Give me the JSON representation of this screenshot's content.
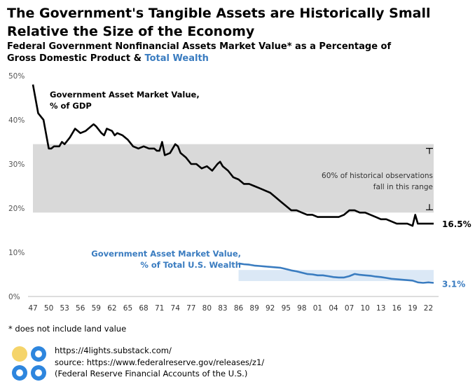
{
  "header": {
    "title": "The Government's Tangible Assets are Historically Small Relative the Size of the Economy",
    "subtitle_line1": "Federal Government Nonfinancial Assets Market Value* as a Percentage of",
    "subtitle_line2_a": "Gross Domestic Product & ",
    "subtitle_line2_b": "Total Wealth"
  },
  "footnote": "* does not include land value",
  "source": {
    "site": "https://4lights.substack.com/",
    "url": "source: https://www.federalreserve.gov/releases/z1/",
    "desc": "(Federal Reserve Financial Accounts of the U.S.)"
  },
  "colors": {
    "gdp_line": "#000000",
    "wealth_line": "#3a7cc0",
    "gdp_band": "#d9d9d9",
    "wealth_band": "#dbe8f6",
    "logo_yellow": "#f5d46a",
    "logo_blue": "#2e86de"
  },
  "chart_data": {
    "type": "line",
    "ylim": [
      0,
      50
    ],
    "xlim": [
      1947,
      2023
    ],
    "y_ticks": [
      0,
      10,
      20,
      30,
      40,
      50
    ],
    "y_tick_labels": [
      "0%",
      "10%",
      "20%",
      "30%",
      "40%",
      "50%"
    ],
    "x_ticks": [
      1947,
      1950,
      1953,
      1956,
      1959,
      1962,
      1965,
      1968,
      1971,
      1974,
      1977,
      1980,
      1983,
      1986,
      1989,
      1992,
      1995,
      1998,
      2001,
      2004,
      2007,
      2010,
      2013,
      2016,
      2019,
      2022
    ],
    "x_tick_labels": [
      "47",
      "50",
      "53",
      "56",
      "59",
      "62",
      "65",
      "68",
      "71",
      "74",
      "77",
      "80",
      "83",
      "86",
      "89",
      "92",
      "95",
      "98",
      "01",
      "04",
      "07",
      "10",
      "13",
      "16",
      "19",
      "22"
    ],
    "series": [
      {
        "name": "Government Asset Market Value, % of GDP",
        "label_line1": "Government Asset Market Value,",
        "label_line2": "% of GDP",
        "end_label": "16.5%",
        "color": "#000000",
        "x": [
          1947,
          1948,
          1949,
          1950,
          1950.5,
          1951,
          1952,
          1952.5,
          1953,
          1954,
          1955,
          1955.5,
          1956,
          1957,
          1958,
          1958.5,
          1959,
          1960,
          1960.5,
          1961,
          1962,
          1962.5,
          1963,
          1964,
          1965,
          1966,
          1967,
          1968,
          1969,
          1970,
          1970.5,
          1971,
          1971.5,
          1972,
          1973,
          1974,
          1974.5,
          1975,
          1976,
          1977,
          1978,
          1979,
          1980,
          1981,
          1982,
          1982.5,
          1983,
          1984,
          1985,
          1986,
          1987,
          1988,
          1989,
          1990,
          1991,
          1992,
          1993,
          1994,
          1995,
          1996,
          1997,
          1998,
          1999,
          2000,
          2001,
          2002,
          2003,
          2004,
          2005,
          2006,
          2007,
          2008,
          2009,
          2010,
          2011,
          2012,
          2013,
          2014,
          2015,
          2016,
          2017,
          2018,
          2019,
          2019.5,
          2020,
          2021,
          2022,
          2023
        ],
        "values": [
          48,
          41.5,
          40,
          33.5,
          33.5,
          34,
          34,
          35,
          34.5,
          36,
          38,
          37.5,
          37,
          37.5,
          38.5,
          39,
          38.5,
          37,
          36.5,
          38,
          37.5,
          36.5,
          37,
          36.5,
          35.5,
          34,
          33.5,
          34,
          33.5,
          33.5,
          33,
          33,
          35,
          32,
          32.5,
          34.5,
          34,
          32.5,
          31.5,
          30,
          30,
          29,
          29.5,
          28.5,
          30,
          30.5,
          29.5,
          28.5,
          27,
          26.5,
          25.5,
          25.5,
          25,
          24.5,
          24,
          23.5,
          22.5,
          21.5,
          20.5,
          19.5,
          19.5,
          19,
          18.5,
          18.5,
          18,
          18,
          18,
          18,
          18,
          18.5,
          19.5,
          19.5,
          19,
          19,
          18.5,
          18,
          17.5,
          17.5,
          17,
          16.5,
          16.5,
          16.5,
          16,
          18.5,
          16.5,
          16.5,
          16.5,
          16.5
        ]
      },
      {
        "name": "Government Asset Market Value, % of Total U.S. Wealth",
        "label_line1": "Government Asset Market Value,",
        "label_line2": "% of Total U.S. Wealth",
        "end_label": "3.1%",
        "color": "#3a7cc0",
        "x": [
          1986,
          1987,
          1988,
          1989,
          1990,
          1991,
          1992,
          1993,
          1994,
          1995,
          1996,
          1997,
          1998,
          1999,
          2000,
          2001,
          2002,
          2003,
          2004,
          2005,
          2006,
          2007,
          2008,
          2009,
          2010,
          2011,
          2012,
          2013,
          2014,
          2015,
          2016,
          2017,
          2018,
          2019,
          2020,
          2021,
          2022,
          2023
        ],
        "values": [
          7.5,
          7.3,
          7.2,
          7,
          6.9,
          6.8,
          6.7,
          6.6,
          6.5,
          6.2,
          5.9,
          5.7,
          5.4,
          5.1,
          5,
          4.8,
          4.8,
          4.6,
          4.4,
          4.3,
          4.3,
          4.6,
          5.1,
          4.9,
          4.8,
          4.7,
          4.5,
          4.4,
          4.2,
          4,
          3.9,
          3.8,
          3.7,
          3.6,
          3.2,
          3.1,
          3.2,
          3.1
        ]
      }
    ],
    "bands": [
      {
        "series": "gdp",
        "x_start": 1947,
        "x_end": 2023,
        "y_low": 19,
        "y_high": 34.5,
        "annotation_line1": "60% of historical observations",
        "annotation_line2": "fall in this range"
      },
      {
        "series": "wealth",
        "x_start": 1986,
        "x_end": 2023,
        "y_low": 3.5,
        "y_high": 6
      }
    ]
  }
}
